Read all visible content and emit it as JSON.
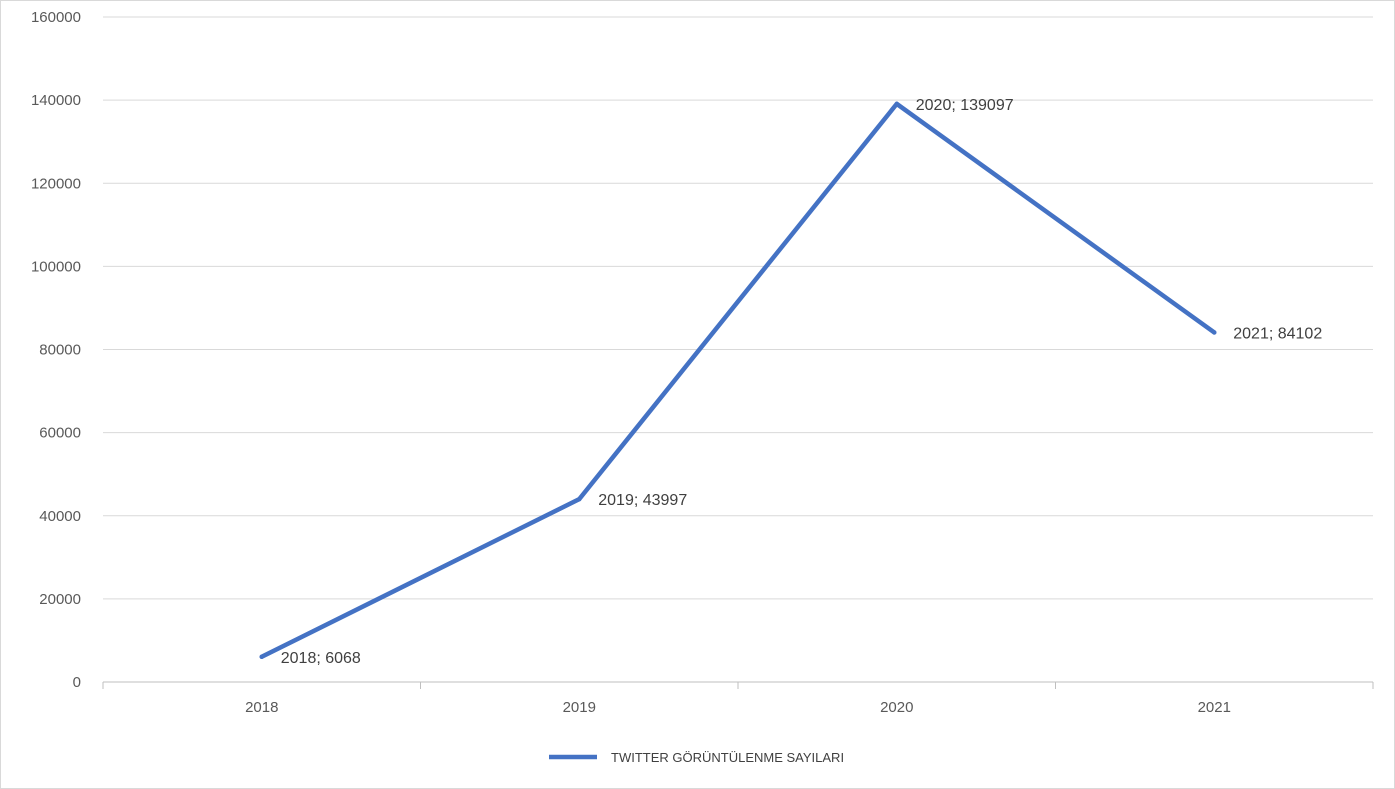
{
  "chart_data": {
    "type": "line",
    "title": "",
    "xlabel": "",
    "ylabel": "",
    "categories": [
      "2018",
      "2019",
      "2020",
      "2021"
    ],
    "series": [
      {
        "name": "TWITTER GÖRÜNTÜLENME SAYILARI",
        "values": [
          6068,
          43997,
          139097,
          84102
        ],
        "color": "#4472C4"
      }
    ],
    "data_labels": [
      "2018; 6068",
      "2019; 43997",
      "2020; 139097",
      "2021; 84102"
    ],
    "ylim": [
      0,
      160000
    ],
    "y_ticks": [
      0,
      20000,
      40000,
      60000,
      80000,
      100000,
      120000,
      140000,
      160000
    ],
    "y_tick_labels": [
      "0",
      "20000",
      "40000",
      "60000",
      "80000",
      "100000",
      "120000",
      "140000",
      "160000"
    ],
    "grid": true,
    "gridline_color": "#d9d9d9",
    "legend_position": "bottom"
  }
}
